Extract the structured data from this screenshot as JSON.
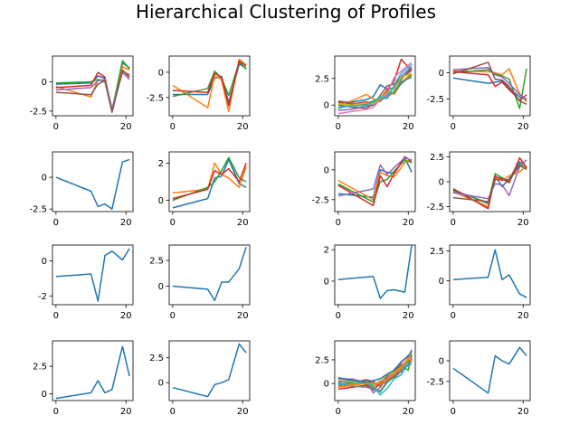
{
  "figure": {
    "title": "Hierarchical Clustering of Profiles"
  },
  "palette": [
    "#1f77b4",
    "#ff7f0e",
    "#2ca02c",
    "#d62728",
    "#9467bd",
    "#8c564b",
    "#e377c2",
    "#7f7f7f",
    "#bcbd22",
    "#17becf"
  ],
  "chart_data": [
    {
      "type": "line",
      "xlim": [
        -1,
        22
      ],
      "ylim": [
        -2.9,
        2.2
      ],
      "xticks": [
        0,
        20
      ],
      "yticks": [
        -2.5,
        0.0
      ],
      "x": [
        0,
        10,
        12,
        14,
        16,
        19,
        21
      ],
      "series": [
        {
          "values": [
            -0.2,
            -0.1,
            0.5,
            0.3,
            -2.4,
            1.6,
            1.2
          ]
        },
        {
          "values": [
            -0.4,
            -1.3,
            0.2,
            0.1,
            -2.5,
            1.3,
            1.0
          ]
        },
        {
          "values": [
            -0.1,
            0.0,
            0.2,
            0.0,
            -2.5,
            1.8,
            1.1
          ]
        },
        {
          "values": [
            -0.5,
            -0.3,
            0.8,
            0.4,
            -2.6,
            1.0,
            0.4
          ]
        },
        {
          "values": [
            -0.7,
            -0.5,
            0.1,
            0.2,
            -2.3,
            0.8,
            0.2
          ]
        },
        {
          "values": [
            -0.9,
            -1.1,
            -0.2,
            0.1,
            -2.6,
            0.9,
            0.6
          ]
        }
      ]
    },
    {
      "type": "line",
      "xlim": [
        -1,
        22
      ],
      "ylim": [
        -4.3,
        1.6
      ],
      "xticks": [
        0,
        20
      ],
      "yticks": [
        -2.5,
        0.0
      ],
      "x": [
        0,
        10,
        12,
        14,
        16,
        19,
        21
      ],
      "series": [
        {
          "values": [
            -2.2,
            -2.2,
            -0.6,
            -0.4,
            -3.0,
            0.8,
            0.4
          ]
        },
        {
          "values": [
            -1.3,
            -3.5,
            -0.3,
            -0.8,
            -3.9,
            1.3,
            0.7
          ]
        },
        {
          "values": [
            -2.4,
            -1.6,
            0.1,
            -0.6,
            -2.3,
            1.0,
            0.3
          ]
        },
        {
          "values": [
            -1.8,
            -2.0,
            -0.1,
            -0.5,
            -3.3,
            1.1,
            0.6
          ]
        }
      ]
    },
    {
      "type": "line",
      "xlim": [
        -1,
        22
      ],
      "ylim": [
        -1.0,
        4.6
      ],
      "xticks": [
        0,
        20
      ],
      "yticks": [
        0.0,
        2.5
      ],
      "x": [
        0,
        4,
        8,
        10,
        12,
        14,
        16,
        18,
        21
      ],
      "series": [
        {
          "values": [
            0.2,
            0.3,
            0.5,
            0.8,
            1.9,
            1.5,
            1.6,
            2.4,
            3.5
          ]
        },
        {
          "values": [
            0.1,
            0.4,
            1.0,
            0.6,
            0.3,
            1.3,
            1.0,
            2.1,
            3.0
          ]
        },
        {
          "values": [
            -0.3,
            0.0,
            0.1,
            0.4,
            0.7,
            1.0,
            1.2,
            2.0,
            2.8
          ]
        },
        {
          "values": [
            0.3,
            0.1,
            0.3,
            0.2,
            0.6,
            1.4,
            2.3,
            4.3,
            3.2
          ]
        },
        {
          "values": [
            -0.5,
            -0.4,
            -0.1,
            0.0,
            0.4,
            0.9,
            1.8,
            2.7,
            3.6
          ]
        },
        {
          "values": [
            0.0,
            -0.2,
            -0.3,
            0.1,
            0.9,
            1.8,
            2.0,
            2.5,
            3.3
          ]
        },
        {
          "values": [
            -0.8,
            -0.6,
            -0.4,
            -0.2,
            0.5,
            1.1,
            2.6,
            3.2,
            4.0
          ]
        },
        {
          "values": [
            0.4,
            0.2,
            0.0,
            0.2,
            0.5,
            0.7,
            1.3,
            2.2,
            2.6
          ]
        },
        {
          "values": [
            0.1,
            0.0,
            0.2,
            0.1,
            0.6,
            1.2,
            1.5,
            2.6,
            3.0
          ]
        },
        {
          "values": [
            -0.2,
            -0.1,
            0.0,
            0.3,
            0.8,
            0.6,
            1.9,
            3.0,
            3.8
          ]
        }
      ]
    },
    {
      "type": "line",
      "xlim": [
        -1,
        22
      ],
      "ylim": [
        -4.1,
        1.6
      ],
      "xticks": [
        0,
        20
      ],
      "yticks": [
        -2.5,
        0.0
      ],
      "x": [
        0,
        10,
        12,
        14,
        16,
        19,
        21
      ],
      "series": [
        {
          "values": [
            -0.5,
            -1.0,
            -0.9,
            -0.8,
            -1.5,
            -2.3,
            -2.6
          ]
        },
        {
          "values": [
            0.2,
            0.1,
            0.0,
            -0.2,
            0.4,
            -2.0,
            -2.8
          ]
        },
        {
          "values": [
            0.0,
            0.3,
            -0.1,
            -0.3,
            -0.6,
            -3.4,
            0.4
          ]
        },
        {
          "values": [
            0.1,
            -0.2,
            -1.3,
            -0.9,
            -1.6,
            -2.6,
            -2.1
          ]
        },
        {
          "values": [
            0.3,
            0.5,
            -0.2,
            -0.4,
            -1.0,
            -2.1,
            -2.5
          ]
        },
        {
          "values": [
            -0.1,
            1.0,
            -0.6,
            -0.7,
            -1.3,
            -2.7,
            -3.0
          ]
        }
      ]
    },
    {
      "type": "line",
      "xlim": [
        -1,
        22
      ],
      "ylim": [
        -2.7,
        2.0
      ],
      "xticks": [
        0,
        20
      ],
      "yticks": [
        -2.5,
        0.0
      ],
      "x": [
        0,
        10,
        12,
        14,
        16,
        19,
        21
      ],
      "series": [
        {
          "values": [
            0.0,
            -1.1,
            -2.3,
            -2.1,
            -2.5,
            1.2,
            1.4
          ]
        }
      ]
    },
    {
      "type": "line",
      "xlim": [
        -1,
        22
      ],
      "ylim": [
        -0.6,
        2.6
      ],
      "xticks": [
        0,
        20
      ],
      "yticks": [
        0,
        2
      ],
      "x": [
        0,
        10,
        12,
        14,
        16,
        19,
        21
      ],
      "series": [
        {
          "values": [
            -0.4,
            0.1,
            1.2,
            1.3,
            2.2,
            0.9,
            0.7
          ]
        },
        {
          "values": [
            0.4,
            0.6,
            2.0,
            1.4,
            1.2,
            0.7,
            1.8
          ]
        },
        {
          "values": [
            0.0,
            0.7,
            1.0,
            1.6,
            2.3,
            1.2,
            1.0
          ]
        },
        {
          "values": [
            0.1,
            0.6,
            1.6,
            1.4,
            1.7,
            1.0,
            2.0
          ]
        }
      ]
    },
    {
      "type": "line",
      "xlim": [
        -1,
        22
      ],
      "ylim": [
        -3.5,
        1.5
      ],
      "xticks": [
        0,
        20
      ],
      "yticks": [
        -2.5,
        0.0
      ],
      "x": [
        0,
        10,
        12,
        14,
        16,
        19,
        21
      ],
      "series": [
        {
          "values": [
            -2.0,
            -2.3,
            0.0,
            -0.2,
            -0.3,
            1.0,
            -0.2
          ]
        },
        {
          "values": [
            -0.9,
            -2.5,
            -0.2,
            -0.5,
            -0.6,
            0.6,
            0.9
          ]
        },
        {
          "values": [
            -1.2,
            -2.7,
            -1.0,
            -0.8,
            -0.1,
            0.8,
            0.6
          ]
        },
        {
          "values": [
            -1.3,
            -3.0,
            -0.5,
            -1.4,
            -0.3,
            1.1,
            0.7
          ]
        },
        {
          "values": [
            -2.2,
            -1.6,
            0.4,
            -0.4,
            0.2,
            1.0,
            0.8
          ]
        }
      ]
    },
    {
      "type": "line",
      "xlim": [
        -1,
        22
      ],
      "ylim": [
        -3.0,
        3.0
      ],
      "xticks": [
        0,
        20
      ],
      "yticks": [
        -2.5,
        0.0,
        2.5
      ],
      "x": [
        0,
        10,
        12,
        14,
        16,
        19,
        21
      ],
      "series": [
        {
          "values": [
            -0.8,
            -2.2,
            0.6,
            -0.5,
            0.3,
            2.0,
            1.5
          ]
        },
        {
          "values": [
            -1.0,
            -2.5,
            0.4,
            0.1,
            0.6,
            1.0,
            1.6
          ]
        },
        {
          "values": [
            -0.9,
            -2.1,
            0.8,
            0.4,
            0.0,
            1.8,
            1.2
          ]
        },
        {
          "values": [
            -0.7,
            -2.7,
            0.5,
            0.3,
            -0.1,
            2.4,
            1.4
          ]
        },
        {
          "values": [
            -1.1,
            -1.7,
            -0.2,
            -0.3,
            -1.4,
            1.5,
            2.2
          ]
        },
        {
          "values": [
            -1.6,
            -2.0,
            0.2,
            0.2,
            0.2,
            1.6,
            1.3
          ]
        }
      ]
    },
    {
      "type": "line",
      "xlim": [
        -1,
        22
      ],
      "ylim": [
        -2.5,
        0.9
      ],
      "xticks": [
        0,
        20
      ],
      "yticks": [
        -2,
        0
      ],
      "x": [
        0,
        10,
        12,
        14,
        16,
        19,
        21
      ],
      "series": [
        {
          "values": [
            -0.9,
            -0.75,
            -2.3,
            0.3,
            0.55,
            0.05,
            0.7
          ]
        }
      ]
    },
    {
      "type": "line",
      "xlim": [
        -1,
        22
      ],
      "ylim": [
        -1.8,
        4.0
      ],
      "xticks": [
        0,
        20
      ],
      "yticks": [
        0.0,
        2.5
      ],
      "x": [
        0,
        10,
        12,
        14,
        16,
        19,
        21
      ],
      "series": [
        {
          "values": [
            0.0,
            -0.3,
            -1.4,
            0.4,
            0.4,
            1.7,
            3.8
          ]
        }
      ]
    },
    {
      "type": "line",
      "xlim": [
        -1,
        22
      ],
      "ylim": [
        -1.5,
        2.3
      ],
      "xticks": [
        0,
        20
      ],
      "yticks": [
        0,
        2
      ],
      "x": [
        0,
        10,
        12,
        14,
        16,
        19,
        21
      ],
      "series": [
        {
          "values": [
            0.1,
            0.3,
            -1.1,
            -0.6,
            -0.55,
            -0.7,
            2.3
          ]
        }
      ]
    },
    {
      "type": "line",
      "xlim": [
        -1,
        22
      ],
      "ylim": [
        -2.0,
        3.0
      ],
      "xticks": [
        0,
        20
      ],
      "yticks": [
        0.0,
        2.5
      ],
      "x": [
        0,
        10,
        12,
        14,
        16,
        19,
        21
      ],
      "series": [
        {
          "values": [
            0.1,
            0.3,
            2.6,
            0.1,
            0.5,
            -1.1,
            -1.4
          ]
        }
      ]
    },
    {
      "type": "line",
      "xlim": [
        -1,
        22
      ],
      "ylim": [
        -0.6,
        4.8
      ],
      "xticks": [
        0,
        20
      ],
      "yticks": [
        0.0,
        2.5
      ],
      "x": [
        0,
        10,
        12,
        14,
        16,
        19,
        21
      ],
      "series": [
        {
          "values": [
            -0.4,
            0.1,
            1.2,
            0.1,
            0.4,
            4.3,
            1.6
          ]
        }
      ]
    },
    {
      "type": "line",
      "xlim": [
        -1,
        22
      ],
      "ylim": [
        -1.8,
        4.2
      ],
      "xticks": [
        0,
        20
      ],
      "yticks": [
        0.0,
        2.5
      ],
      "x": [
        0,
        10,
        12,
        14,
        16,
        19,
        21
      ],
      "series": [
        {
          "values": [
            -0.5,
            -1.4,
            -0.2,
            0.0,
            0.3,
            3.9,
            3.0
          ]
        }
      ]
    },
    {
      "type": "line",
      "xlim": [
        -1,
        22
      ],
      "ylim": [
        -1.8,
        4.5
      ],
      "xticks": [
        0,
        20
      ],
      "yticks": [
        0.0,
        2.5
      ],
      "x": [
        0,
        4,
        8,
        10,
        12,
        14,
        16,
        18,
        20,
        21
      ],
      "series": [
        {
          "values": [
            0.5,
            0.3,
            0.2,
            0.0,
            -0.2,
            0.3,
            0.8,
            1.6,
            2.4,
            2.7
          ]
        },
        {
          "values": [
            -0.3,
            -0.1,
            0.0,
            -0.4,
            0.1,
            0.6,
            1.1,
            1.5,
            2.8,
            2.2
          ]
        },
        {
          "values": [
            0.1,
            0.2,
            -0.1,
            -0.5,
            -0.8,
            0.2,
            0.9,
            1.9,
            1.4,
            3.1
          ]
        },
        {
          "values": [
            -0.6,
            -0.4,
            -0.2,
            -0.7,
            0.0,
            0.5,
            0.6,
            1.3,
            2.1,
            2.5
          ]
        },
        {
          "values": [
            0.2,
            0.0,
            0.3,
            -1.0,
            -0.4,
            0.7,
            1.0,
            1.2,
            2.6,
            3.6
          ]
        },
        {
          "values": [
            -0.2,
            0.1,
            0.4,
            0.2,
            -0.3,
            0.8,
            1.3,
            2.0,
            2.3,
            2.9
          ]
        },
        {
          "values": [
            0.4,
            0.5,
            0.1,
            -0.2,
            0.3,
            0.4,
            1.5,
            2.2,
            3.0,
            2.4
          ]
        },
        {
          "values": [
            0.0,
            -0.3,
            -0.4,
            -0.6,
            -0.9,
            0.1,
            0.7,
            1.4,
            1.9,
            2.6
          ]
        },
        {
          "values": [
            0.3,
            0.2,
            0.0,
            -0.1,
            0.2,
            0.9,
            1.2,
            1.7,
            2.5,
            3.3
          ]
        },
        {
          "values": [
            -0.1,
            0.0,
            0.2,
            -0.3,
            -1.2,
            -0.5,
            0.5,
            0.9,
            2.2,
            2.0
          ]
        },
        {
          "values": [
            0.6,
            0.4,
            0.1,
            0.3,
            0.5,
            1.0,
            1.4,
            2.3,
            2.9,
            3.4
          ]
        },
        {
          "values": [
            -0.4,
            -0.2,
            0.0,
            0.1,
            -0.1,
            0.4,
            1.0,
            1.8,
            2.7,
            2.3
          ]
        }
      ]
    },
    {
      "type": "line",
      "xlim": [
        -1,
        22
      ],
      "ylim": [
        -4.8,
        2.4
      ],
      "xticks": [
        0,
        20
      ],
      "yticks": [
        -2.5,
        0.0
      ],
      "x": [
        0,
        10,
        12,
        14,
        16,
        19,
        21
      ],
      "series": [
        {
          "values": [
            -0.9,
            -3.9,
            0.6,
            0.0,
            -0.4,
            1.6,
            0.6
          ]
        }
      ]
    }
  ]
}
